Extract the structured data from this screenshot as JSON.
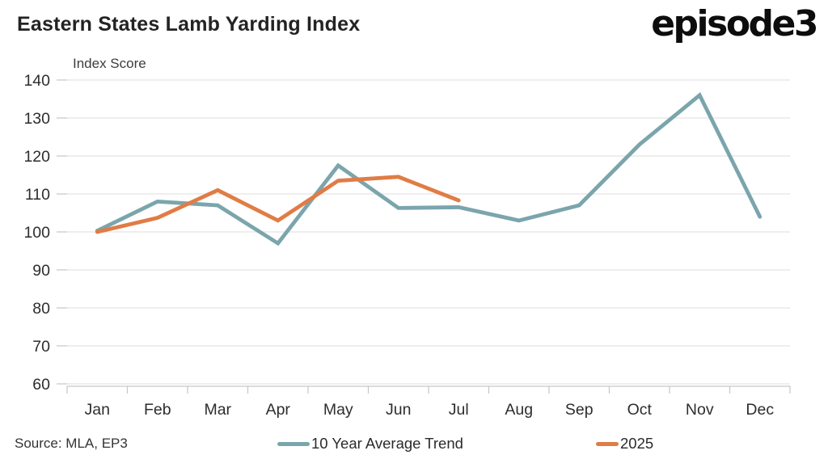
{
  "page": {
    "title": "Eastern States Lamb Yarding Index",
    "logo": "episode3",
    "source": "Source: MLA, EP3"
  },
  "chart_data": {
    "type": "line",
    "title": "Eastern States Lamb Yarding Index",
    "ylabel": "Index Score",
    "xlabel": "",
    "categories": [
      "Jan",
      "Feb",
      "Mar",
      "Apr",
      "May",
      "Jun",
      "Jul",
      "Aug",
      "Sep",
      "Oct",
      "Nov",
      "Dec"
    ],
    "series": [
      {
        "name": "10 Year Average Trend",
        "color": "#7BA5AC",
        "values": [
          100.3,
          108,
          107,
          97,
          117.5,
          106.3,
          106.5,
          103,
          107,
          123,
          136,
          104
        ]
      },
      {
        "name": "2025",
        "color": "#E07C45",
        "values": [
          100,
          103.7,
          111,
          103,
          113.5,
          114.5,
          108.3
        ]
      }
    ],
    "ylim": [
      60,
      140
    ],
    "yticks": [
      60,
      70,
      80,
      90,
      100,
      110,
      120,
      130,
      140
    ],
    "grid": true,
    "legend_position": "bottom",
    "colors": {
      "gridline": "#E4E4E4",
      "axis": "#C6C6C6",
      "tick_text": "#2D2D2D"
    }
  }
}
